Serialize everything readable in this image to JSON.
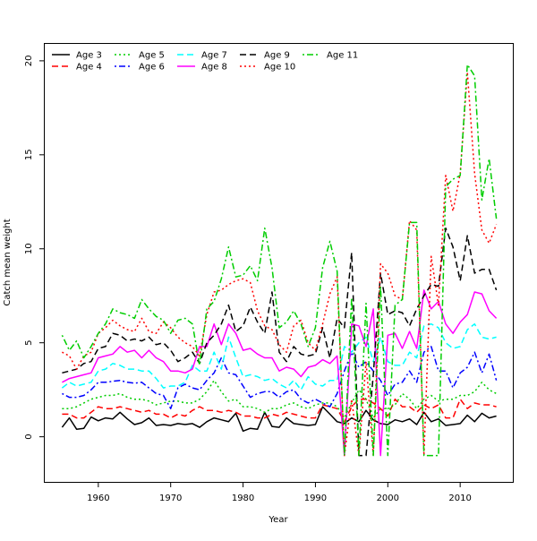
{
  "chart_data": {
    "type": "line",
    "title": "",
    "xlabel": "Year",
    "ylabel": "Catch mean weight",
    "xlim": [
      1951.3,
      1818.7
    ],
    "ylim": [
      -2.4,
      20.9
    ],
    "x_ticks": [
      1960,
      1970,
      1980,
      1990,
      2000,
      2010
    ],
    "y_ticks": [
      0,
      5,
      10,
      15,
      20
    ],
    "grid": false,
    "legend_position": "top-left",
    "x": [
      1955,
      1956,
      1957,
      1958,
      1959,
      1960,
      1961,
      1962,
      1963,
      1964,
      1965,
      1966,
      1967,
      1968,
      1969,
      1970,
      1971,
      1972,
      1973,
      1974,
      1975,
      1976,
      1977,
      1978,
      1979,
      1980,
      1981,
      1982,
      1983,
      1984,
      1985,
      1986,
      1987,
      1988,
      1989,
      1990,
      1991,
      1992,
      1993,
      1994,
      1995,
      1996,
      1997,
      1998,
      1999,
      2000,
      2001,
      2002,
      2003,
      2004,
      2005,
      2006,
      2007,
      2008,
      2009,
      2010,
      2011,
      2012,
      2013,
      2014,
      2015
    ],
    "series": [
      {
        "name": "Age 3",
        "color": "#000000",
        "dash": "solid",
        "values": [
          0.5,
          1.0,
          0.4,
          0.45,
          1.05,
          0.85,
          1.0,
          0.95,
          1.3,
          0.95,
          0.65,
          0.75,
          1.0,
          0.6,
          0.65,
          0.6,
          0.7,
          0.65,
          0.7,
          0.5,
          0.8,
          1.0,
          0.9,
          0.8,
          1.25,
          0.3,
          0.45,
          0.4,
          1.3,
          0.55,
          0.5,
          1.0,
          0.7,
          0.65,
          0.6,
          0.65,
          1.6,
          1.2,
          0.8,
          0.7,
          1.0,
          0.8,
          1.4,
          0.9,
          0.7,
          0.65,
          0.9,
          0.8,
          0.95,
          0.65,
          1.3,
          0.8,
          0.95,
          0.6,
          0.65,
          0.7,
          1.15,
          0.8,
          1.25,
          1.0,
          1.1
        ]
      },
      {
        "name": "Age 4",
        "color": "#ff0000",
        "dash": "longdash",
        "values": [
          1.2,
          1.2,
          1.0,
          1.0,
          1.3,
          1.6,
          1.5,
          1.5,
          1.6,
          1.5,
          1.4,
          1.3,
          1.4,
          1.2,
          1.2,
          1.0,
          1.2,
          1.1,
          1.4,
          1.6,
          1.4,
          1.4,
          1.3,
          1.4,
          1.3,
          1.1,
          1.1,
          1.0,
          1.0,
          1.2,
          1.1,
          1.3,
          1.2,
          1.1,
          1.0,
          1.0,
          1.7,
          1.6,
          1.5,
          0.8,
          1.6,
          2.0,
          2.0,
          1.8,
          1.5,
          1.1,
          2.0,
          1.6,
          1.6,
          1.3,
          1.7,
          1.5,
          1.7,
          1.0,
          1.0,
          2.0,
          1.5,
          1.8,
          1.7,
          1.7,
          1.6
        ]
      },
      {
        "name": "Age 5",
        "color": "#00cd00",
        "dash": "dotted",
        "values": [
          1.5,
          1.5,
          1.6,
          1.8,
          2.0,
          2.1,
          2.2,
          2.2,
          2.3,
          2.1,
          2.0,
          2.0,
          1.9,
          1.7,
          1.8,
          1.9,
          1.9,
          1.8,
          1.8,
          2.0,
          2.4,
          3.0,
          2.4,
          1.9,
          2.0,
          1.6,
          1.6,
          1.5,
          1.3,
          1.5,
          1.5,
          1.7,
          1.8,
          1.6,
          1.5,
          1.7,
          1.8,
          1.8,
          1.6,
          1.0,
          1.8,
          2.5,
          2.0,
          1.0,
          1.5,
          1.5,
          1.7,
          2.3,
          2.0,
          1.5,
          2.0,
          2.2,
          1.9,
          2.0,
          2.0,
          2.2,
          2.2,
          2.4,
          2.9,
          2.5,
          2.3
        ]
      },
      {
        "name": "Age 6",
        "color": "#0000ff",
        "dash": "dotdash",
        "values": [
          2.3,
          2.1,
          2.1,
          2.2,
          2.5,
          2.9,
          2.9,
          2.95,
          3.0,
          2.9,
          2.85,
          2.9,
          2.6,
          2.3,
          2.2,
          1.5,
          2.6,
          2.8,
          2.6,
          2.5,
          3.0,
          3.4,
          4.2,
          3.4,
          3.3,
          2.7,
          2.1,
          2.3,
          2.4,
          2.4,
          2.1,
          2.4,
          2.5,
          2.0,
          1.8,
          2.0,
          1.8,
          1.6,
          2.3,
          3.5,
          4.5,
          3.7,
          4.0,
          3.5,
          3.0,
          2.2,
          2.8,
          2.9,
          3.5,
          2.9,
          4.5,
          4.8,
          3.5,
          3.5,
          2.6,
          3.4,
          3.7,
          4.5,
          3.4,
          4.4,
          3.0
        ]
      },
      {
        "name": "Age 7",
        "color": "#00ffff",
        "dash": "longdash",
        "values": [
          2.6,
          2.9,
          2.7,
          2.8,
          2.9,
          3.5,
          3.6,
          3.9,
          3.8,
          3.6,
          3.6,
          3.5,
          3.5,
          3.1,
          2.6,
          2.7,
          2.7,
          2.9,
          3.8,
          3.5,
          3.5,
          4.5,
          3.6,
          5.3,
          4.2,
          3.2,
          3.3,
          3.2,
          3.0,
          3.1,
          2.8,
          2.6,
          3.0,
          2.5,
          3.2,
          2.8,
          2.7,
          3.0,
          3.0,
          4.8,
          4.5,
          5.0,
          5.3,
          4.0,
          5.3,
          4.0,
          3.8,
          3.8,
          4.5,
          4.2,
          5.9,
          6.0,
          5.8,
          5.0,
          4.7,
          4.8,
          5.7,
          6.0,
          5.3,
          5.2,
          5.3
        ]
      },
      {
        "name": "Age 8",
        "color": "#ff00ff",
        "dash": "solid",
        "values": [
          2.9,
          3.1,
          3.2,
          3.3,
          3.4,
          4.2,
          4.3,
          4.4,
          4.8,
          4.5,
          4.6,
          4.2,
          4.6,
          4.2,
          4.0,
          3.5,
          3.5,
          3.4,
          3.6,
          4.8,
          4.8,
          6.0,
          4.9,
          6.0,
          5.5,
          4.6,
          4.7,
          4.4,
          4.2,
          4.2,
          3.5,
          3.7,
          3.6,
          3.2,
          3.7,
          3.8,
          4.1,
          3.9,
          4.3,
          -1.0,
          6.0,
          5.9,
          4.8,
          6.8,
          -1.0,
          5.4,
          5.5,
          4.7,
          5.6,
          4.7,
          7.8,
          6.8,
          7.2,
          6.0,
          5.5,
          6.1,
          6.5,
          7.7,
          7.6,
          6.7,
          6.3
        ]
      },
      {
        "name": "Age 9",
        "color": "#000000",
        "dash": "longdash",
        "values": [
          3.4,
          3.5,
          3.6,
          3.9,
          4.0,
          4.7,
          4.8,
          5.5,
          5.4,
          5.1,
          5.2,
          5.1,
          5.3,
          4.9,
          5.0,
          4.6,
          4.0,
          4.2,
          4.5,
          3.9,
          5.0,
          5.4,
          6.0,
          7.0,
          5.6,
          5.9,
          6.9,
          6.1,
          5.5,
          7.7,
          4.5,
          4.0,
          4.8,
          4.4,
          4.3,
          4.4,
          5.8,
          4.2,
          6.3,
          5.8,
          9.8,
          -1.0,
          -1.0,
          3.3,
          8.7,
          6.5,
          6.7,
          6.6,
          5.9,
          6.8,
          7.5,
          8.1,
          8.0,
          11.1,
          10.1,
          8.3,
          10.7,
          8.7,
          8.9,
          8.9,
          7.8
        ]
      },
      {
        "name": "Age 10",
        "color": "#ff0000",
        "dash": "dotted",
        "values": [
          4.5,
          4.3,
          3.6,
          4.3,
          4.5,
          5.5,
          5.8,
          6.2,
          5.9,
          5.7,
          5.6,
          6.3,
          5.6,
          5.5,
          6.1,
          5.8,
          5.3,
          5.0,
          4.8,
          4.3,
          6.5,
          7.7,
          7.8,
          8.1,
          8.3,
          8.4,
          8.2,
          6.7,
          5.9,
          5.7,
          4.9,
          4.5,
          5.9,
          6.2,
          5.0,
          4.6,
          6.0,
          7.6,
          8.5,
          -1.0,
          2.0,
          -1.0,
          4.0,
          -1.0,
          9.2,
          8.7,
          7.5,
          7.3,
          11.5,
          11.0,
          -1.0,
          9.6,
          7.0,
          13.9,
          12.0,
          14.0,
          19.4,
          14.0,
          11.0,
          10.3,
          11.3
        ]
      },
      {
        "name": "Age 11",
        "color": "#00cd00",
        "dash": "dotdash",
        "values": [
          5.4,
          4.6,
          5.1,
          4.2,
          4.8,
          5.5,
          6.0,
          6.8,
          6.6,
          6.5,
          6.3,
          7.3,
          6.8,
          6.4,
          6.2,
          5.5,
          6.2,
          6.3,
          6.0,
          3.8,
          6.8,
          7.2,
          8.4,
          10.1,
          8.5,
          8.6,
          9.1,
          8.3,
          11.1,
          9.0,
          5.8,
          6.1,
          6.7,
          6.0,
          4.8,
          5.8,
          9.0,
          10.4,
          8.8,
          -1.0,
          7.4,
          -1.0,
          7.1,
          -1.0,
          8.0,
          -1.0,
          7.0,
          7.3,
          11.4,
          11.4,
          -1.0,
          -1.0,
          -1.0,
          13.3,
          13.7,
          13.9,
          19.8,
          19.2,
          12.6,
          14.8,
          11.6
        ]
      }
    ]
  }
}
